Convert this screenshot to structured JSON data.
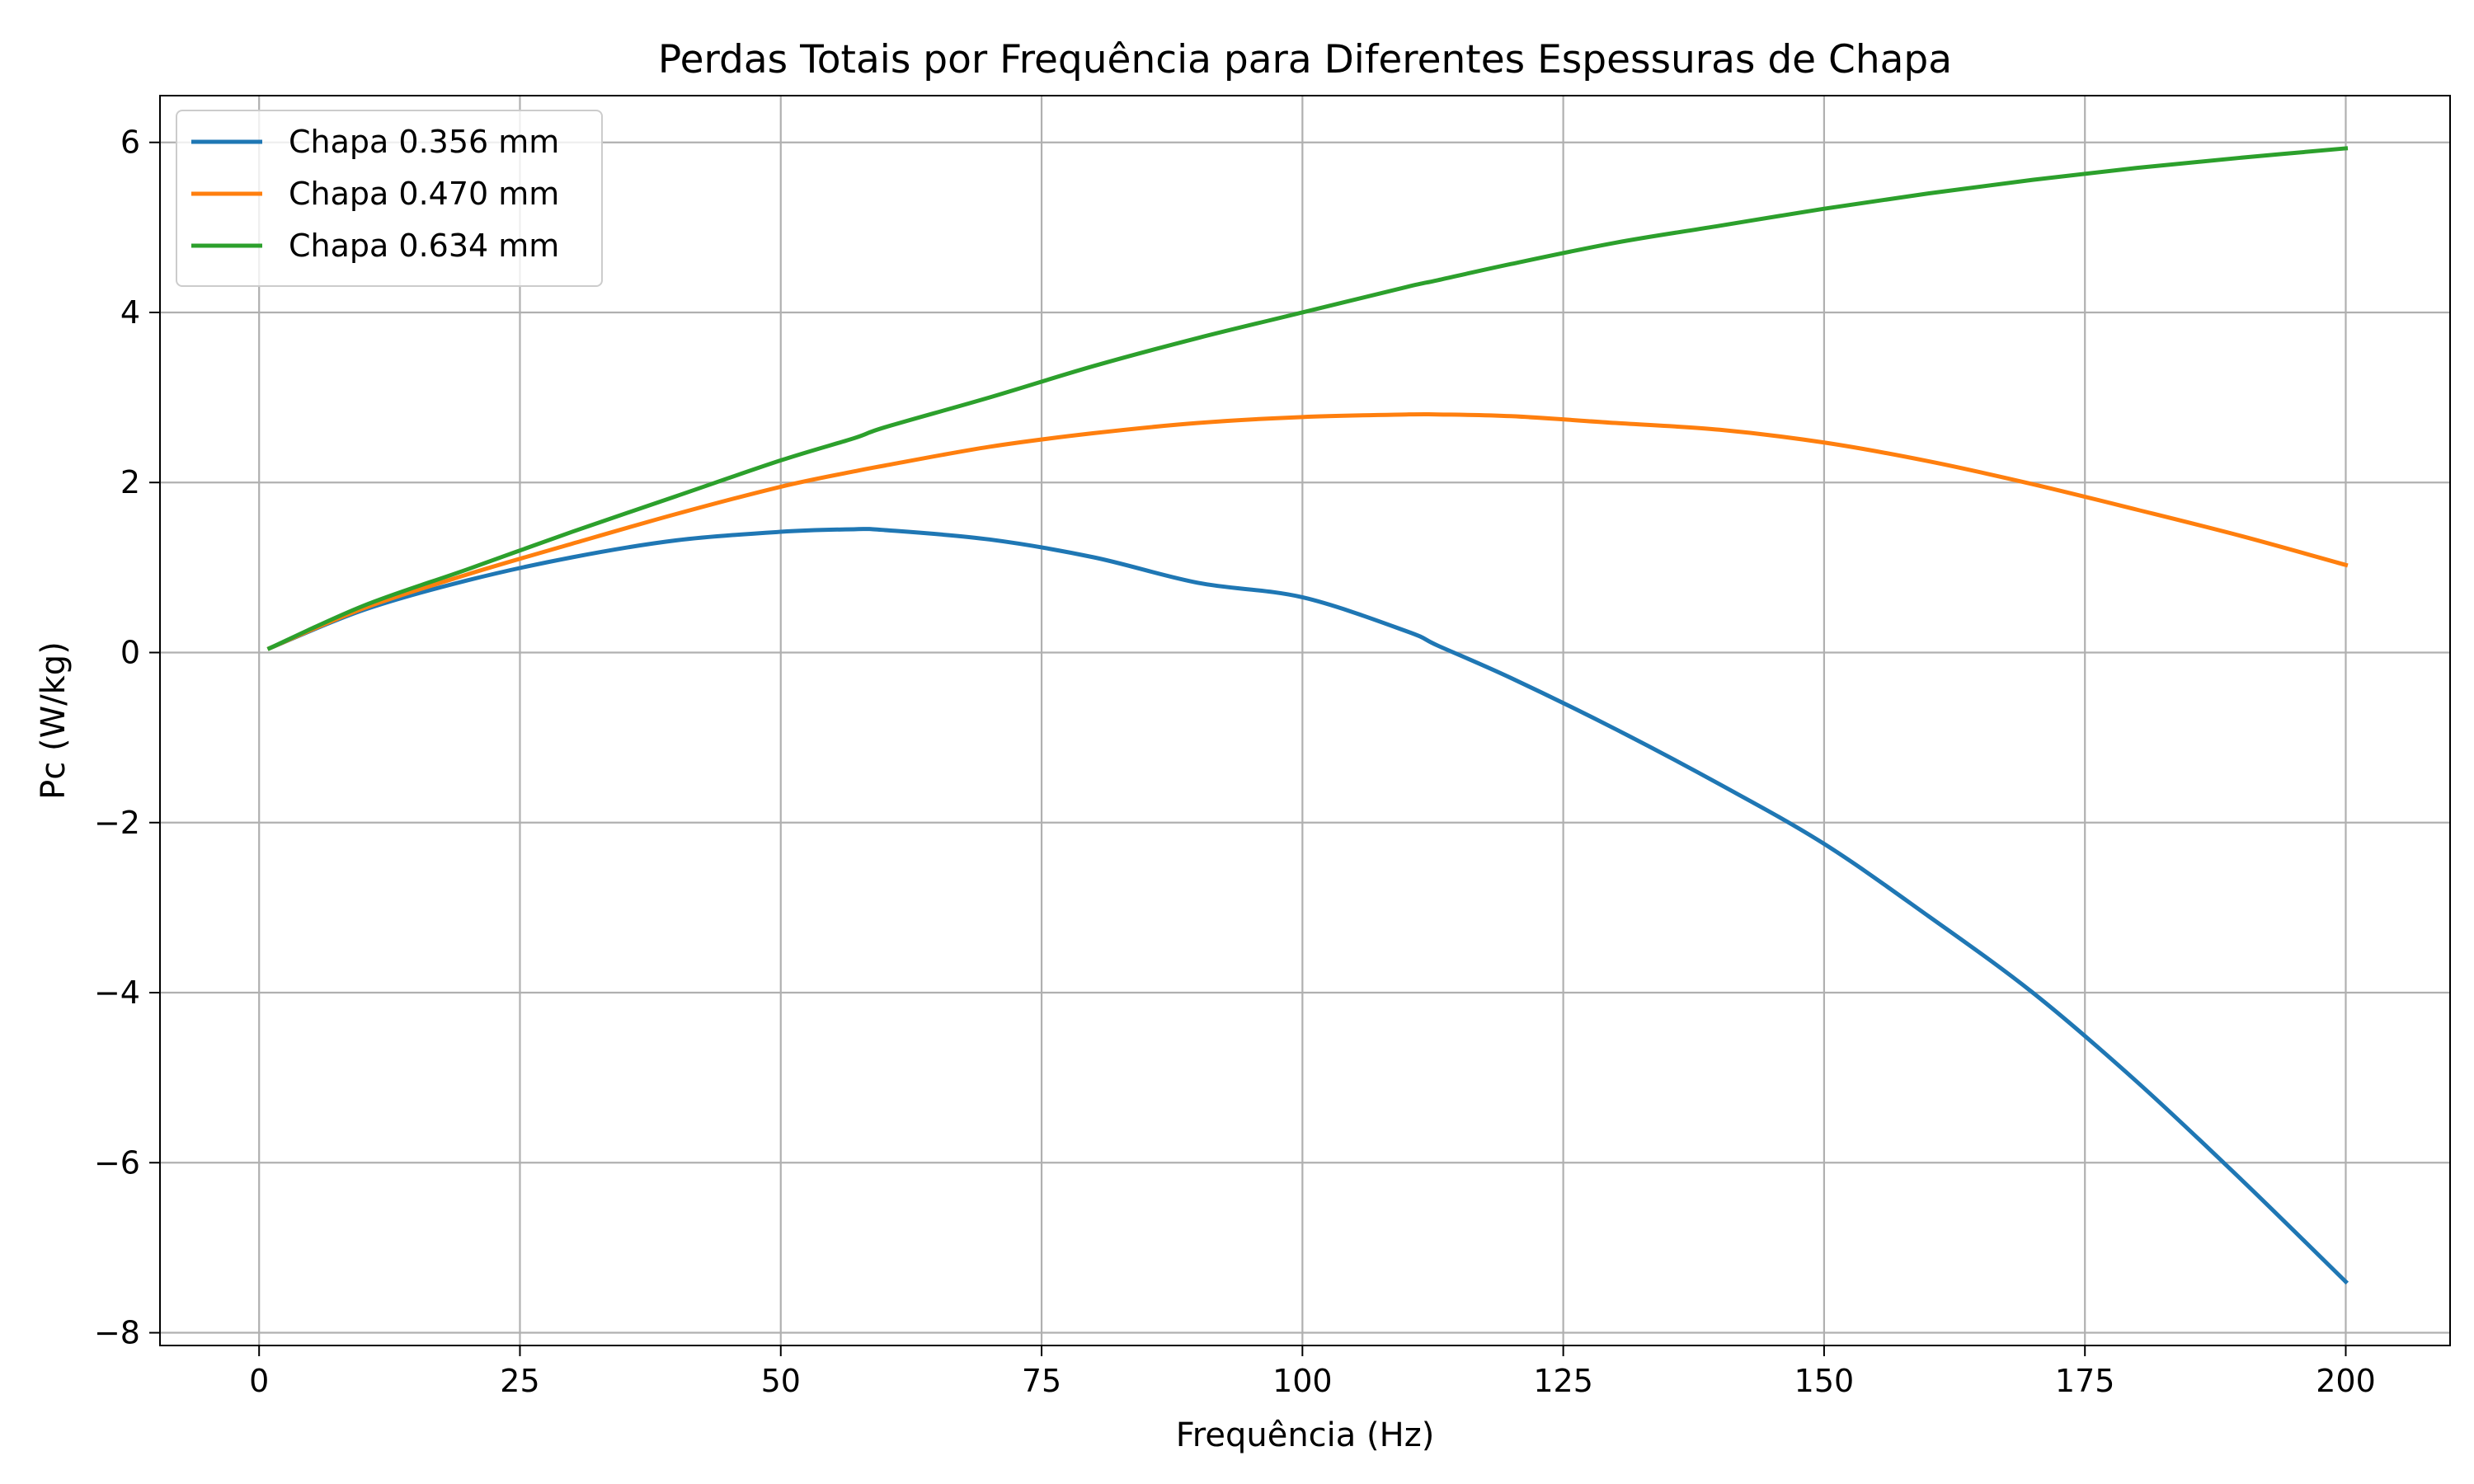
{
  "chart_data": {
    "type": "line",
    "title": "Perdas Totais por Frequência para Diferentes Espessuras de Chapa",
    "xlabel": "Frequência (Hz)",
    "ylabel": "Pc (W/kg)",
    "xlim": [
      -9.5,
      210
    ],
    "ylim": [
      -8.15,
      6.55
    ],
    "xticks": [
      0,
      25,
      50,
      75,
      100,
      125,
      150,
      175,
      200
    ],
    "xtick_labels": [
      "0",
      "25",
      "50",
      "75",
      "100",
      "125",
      "150",
      "175",
      "200"
    ],
    "yticks": [
      -8,
      -6,
      -4,
      -2,
      0,
      2,
      4,
      6
    ],
    "ytick_labels": [
      "−8",
      "−6",
      "−4",
      "−2",
      "0",
      "2",
      "4",
      "6"
    ],
    "grid": true,
    "legend_position": "upper-left",
    "x": [
      1,
      10,
      20,
      30,
      40,
      50,
      57,
      60,
      70,
      80,
      90,
      100,
      110,
      113,
      120,
      130,
      140,
      150,
      160,
      170,
      180,
      190,
      200
    ],
    "series": [
      {
        "name": "Chapa 0.356 mm",
        "color": "#1f77b4",
        "values": [
          0.05,
          0.5,
          0.85,
          1.12,
          1.32,
          1.42,
          1.45,
          1.44,
          1.33,
          1.12,
          0.82,
          0.65,
          0.25,
          0.08,
          -0.3,
          -0.9,
          -1.55,
          -2.25,
          -3.1,
          -4.0,
          -5.05,
          -6.2,
          -7.4
        ]
      },
      {
        "name": "Chapa 0.470 mm",
        "color": "#ff7f0e",
        "values": [
          0.05,
          0.52,
          0.92,
          1.28,
          1.63,
          1.95,
          2.13,
          2.2,
          2.42,
          2.58,
          2.7,
          2.77,
          2.8,
          2.8,
          2.78,
          2.7,
          2.62,
          2.47,
          2.25,
          1.98,
          1.68,
          1.37,
          1.03
        ]
      },
      {
        "name": "Chapa 0.634 mm",
        "color": "#2ca02c",
        "values": [
          0.05,
          0.55,
          0.98,
          1.42,
          1.84,
          2.26,
          2.52,
          2.65,
          3.0,
          3.37,
          3.7,
          4.0,
          4.3,
          4.38,
          4.57,
          4.82,
          5.02,
          5.22,
          5.4,
          5.56,
          5.7,
          5.82,
          5.93
        ]
      }
    ]
  }
}
